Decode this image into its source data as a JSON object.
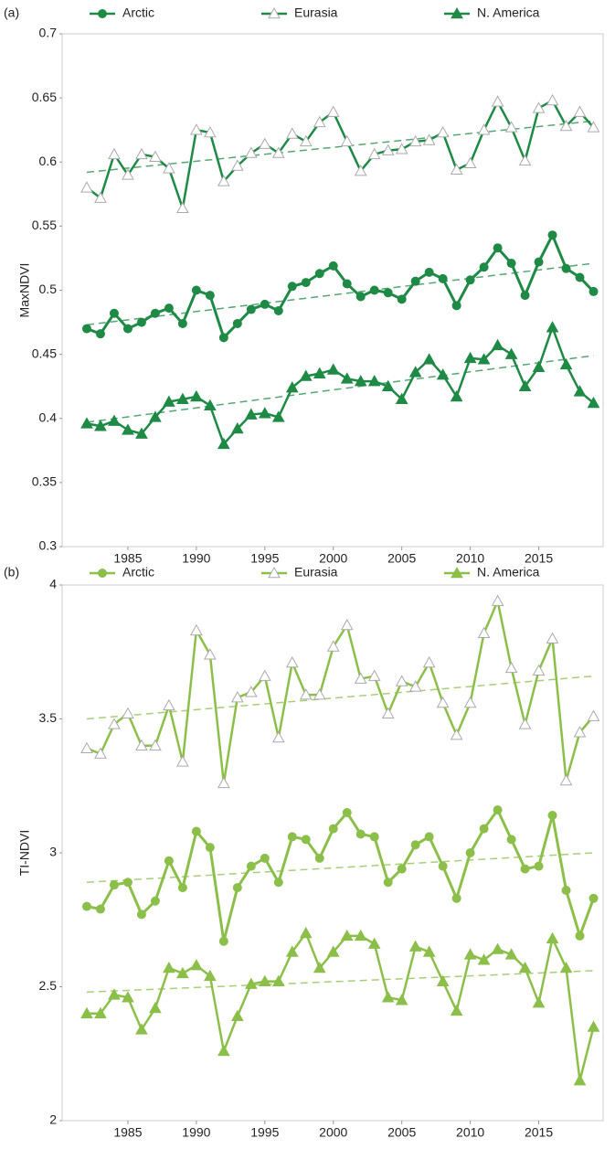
{
  "chart_data": [
    {
      "type": "line",
      "panel_label": "(a)",
      "ylabel": "MaxNDVI",
      "x": [
        1982,
        1983,
        1984,
        1985,
        1986,
        1987,
        1988,
        1989,
        1990,
        1991,
        1992,
        1993,
        1994,
        1995,
        1996,
        1997,
        1998,
        1999,
        2000,
        2001,
        2002,
        2003,
        2004,
        2005,
        2006,
        2007,
        2008,
        2009,
        2010,
        2011,
        2012,
        2013,
        2014,
        2015,
        2016,
        2017,
        2018,
        2019
      ],
      "xlim": [
        1980.2,
        2019.7
      ],
      "xticks": [
        1985,
        1990,
        1995,
        2000,
        2005,
        2010,
        2015
      ],
      "ylim": [
        0.3,
        0.7
      ],
      "yticks": [
        0.3,
        0.35,
        0.4,
        0.45,
        0.5,
        0.55,
        0.6,
        0.65,
        0.7
      ],
      "series": [
        {
          "name": "Arctic",
          "color": "#1e8a45",
          "marker": "circle",
          "trend": [
            0.473,
            0.521
          ],
          "values": [
            0.47,
            0.466,
            0.482,
            0.47,
            0.475,
            0.482,
            0.486,
            0.474,
            0.5,
            0.496,
            0.463,
            0.474,
            0.485,
            0.489,
            0.484,
            0.503,
            0.506,
            0.513,
            0.519,
            0.505,
            0.495,
            0.5,
            0.498,
            0.493,
            0.507,
            0.514,
            0.509,
            0.488,
            0.508,
            0.518,
            0.533,
            0.521,
            0.496,
            0.522,
            0.543,
            0.517,
            0.51,
            0.499
          ]
        },
        {
          "name": "Eurasia",
          "color": "#1e8a45",
          "marker": "triangle-open",
          "trend": [
            0.592,
            0.632
          ],
          "values": [
            0.58,
            0.572,
            0.606,
            0.59,
            0.606,
            0.604,
            0.595,
            0.564,
            0.625,
            0.623,
            0.585,
            0.597,
            0.607,
            0.614,
            0.607,
            0.622,
            0.616,
            0.631,
            0.639,
            0.616,
            0.593,
            0.606,
            0.609,
            0.61,
            0.616,
            0.617,
            0.623,
            0.594,
            0.599,
            0.625,
            0.647,
            0.627,
            0.601,
            0.642,
            0.648,
            0.628,
            0.639,
            0.627
          ]
        },
        {
          "name": "N. America",
          "color": "#1e8a45",
          "marker": "triangle",
          "trend": [
            0.397,
            0.449
          ],
          "values": [
            0.396,
            0.394,
            0.398,
            0.391,
            0.388,
            0.401,
            0.413,
            0.415,
            0.417,
            0.41,
            0.38,
            0.392,
            0.403,
            0.404,
            0.401,
            0.424,
            0.433,
            0.435,
            0.438,
            0.431,
            0.429,
            0.429,
            0.425,
            0.415,
            0.436,
            0.446,
            0.434,
            0.417,
            0.447,
            0.446,
            0.457,
            0.45,
            0.425,
            0.44,
            0.471,
            0.442,
            0.421,
            0.412
          ]
        }
      ]
    },
    {
      "type": "line",
      "panel_label": "(b)",
      "ylabel": "TI-NDVI",
      "x": [
        1982,
        1983,
        1984,
        1985,
        1986,
        1987,
        1988,
        1989,
        1990,
        1991,
        1992,
        1993,
        1994,
        1995,
        1996,
        1997,
        1998,
        1999,
        2000,
        2001,
        2002,
        2003,
        2004,
        2005,
        2006,
        2007,
        2008,
        2009,
        2010,
        2011,
        2012,
        2013,
        2014,
        2015,
        2016,
        2017,
        2018,
        2019
      ],
      "xlim": [
        1980.2,
        2019.7
      ],
      "xticks": [
        1985,
        1990,
        1995,
        2000,
        2005,
        2010,
        2015
      ],
      "ylim": [
        2,
        4
      ],
      "yticks": [
        2,
        2.5,
        3,
        3.5,
        4
      ],
      "series": [
        {
          "name": "Arctic",
          "color": "#8cbf4a",
          "marker": "circle",
          "trend": [
            2.89,
            3.0
          ],
          "values": [
            2.8,
            2.79,
            2.88,
            2.89,
            2.77,
            2.82,
            2.97,
            2.87,
            3.08,
            3.02,
            2.67,
            2.87,
            2.95,
            2.98,
            2.89,
            3.06,
            3.05,
            2.98,
            3.09,
            3.15,
            3.07,
            3.06,
            2.89,
            2.94,
            3.03,
            3.06,
            2.95,
            2.83,
            3.0,
            3.09,
            3.16,
            3.05,
            2.94,
            2.95,
            3.14,
            2.86,
            2.69,
            2.83
          ]
        },
        {
          "name": "Eurasia",
          "color": "#8cbf4a",
          "marker": "triangle-open",
          "trend": [
            3.5,
            3.66
          ],
          "values": [
            3.39,
            3.37,
            3.48,
            3.52,
            3.4,
            3.4,
            3.55,
            3.34,
            3.83,
            3.74,
            3.26,
            3.58,
            3.6,
            3.66,
            3.43,
            3.71,
            3.59,
            3.59,
            3.77,
            3.85,
            3.65,
            3.66,
            3.52,
            3.64,
            3.62,
            3.71,
            3.56,
            3.44,
            3.56,
            3.82,
            3.94,
            3.69,
            3.48,
            3.68,
            3.8,
            3.27,
            3.45,
            3.51
          ]
        },
        {
          "name": "N. America",
          "color": "#8cbf4a",
          "marker": "triangle",
          "trend": [
            2.48,
            2.56
          ],
          "values": [
            2.4,
            2.4,
            2.47,
            2.46,
            2.34,
            2.42,
            2.57,
            2.55,
            2.58,
            2.54,
            2.26,
            2.39,
            2.51,
            2.52,
            2.52,
            2.63,
            2.7,
            2.57,
            2.63,
            2.69,
            2.69,
            2.66,
            2.46,
            2.45,
            2.65,
            2.63,
            2.52,
            2.41,
            2.62,
            2.6,
            2.64,
            2.62,
            2.57,
            2.44,
            2.68,
            2.57,
            2.15,
            2.35
          ]
        }
      ]
    }
  ]
}
